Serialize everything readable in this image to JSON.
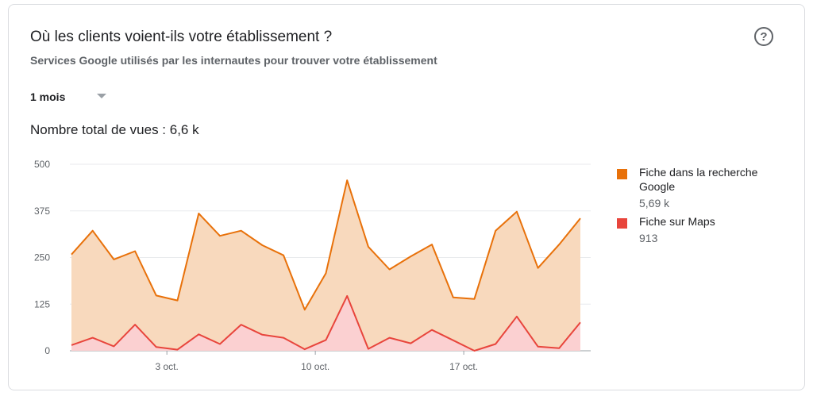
{
  "card": {
    "title": "Où les clients voient-ils votre établissement ?",
    "subtitle": "Services Google utilisés par les internautes pour trouver votre établissement",
    "help_icon": "help-circle-icon",
    "help_glyph": "?",
    "period_selector": {
      "selected": "1 mois"
    },
    "total": "Nombre total de vues : 6,6 k"
  },
  "legend": [
    {
      "name": "Fiche dans la recherche Google",
      "value": "5,69 k",
      "color": "#e8710a"
    },
    {
      "name": "Fiche sur Maps",
      "value": "913",
      "color": "#e8453c"
    }
  ],
  "chart_data": {
    "type": "area",
    "ylim": [
      0,
      500
    ],
    "yticks": [
      "500",
      "375",
      "250",
      "125",
      "0"
    ],
    "ytick_values": [
      500,
      375,
      250,
      125,
      0
    ],
    "xtick_labels": [
      {
        "label": "3 oct.",
        "index": 4.5
      },
      {
        "label": "10 oct.",
        "index": 11.5
      },
      {
        "label": "17 oct.",
        "index": 18.5
      }
    ],
    "grid": true,
    "legend_position": "right",
    "series": [
      {
        "name": "Fiche dans la recherche Google",
        "color": "#e8710a",
        "fill": "#f8d9bd",
        "values": [
          258,
          322,
          245,
          267,
          148,
          135,
          368,
          308,
          322,
          283,
          256,
          110,
          208,
          457,
          279,
          218,
          253,
          285,
          143,
          139,
          322,
          373,
          222,
          285,
          355
        ]
      },
      {
        "name": "Fiche sur Maps",
        "color": "#e8453c",
        "fill": "#fbd0d1",
        "values": [
          15,
          35,
          12,
          70,
          10,
          3,
          44,
          18,
          70,
          43,
          35,
          4,
          29,
          147,
          5,
          35,
          20,
          56,
          28,
          0,
          18,
          92,
          11,
          7,
          76
        ]
      }
    ]
  }
}
